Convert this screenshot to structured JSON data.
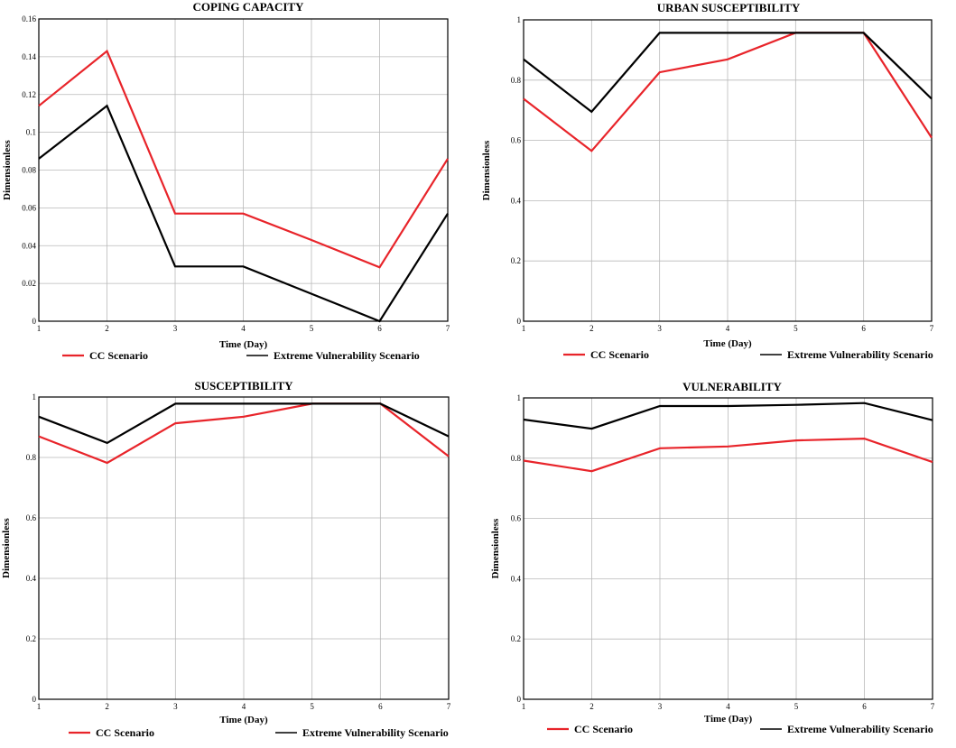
{
  "colors": {
    "cc": "#e8242a",
    "extreme": "#000000"
  },
  "chart_data": [
    {
      "type": "line",
      "title": "COPING CAPACITY",
      "xlabel": "Time (Day)",
      "ylabel": "Dimensionless",
      "x": [
        1,
        2,
        3,
        4,
        5,
        6,
        7
      ],
      "xlim": [
        1,
        7
      ],
      "ylim": [
        0,
        0.16
      ],
      "yticks": [
        0,
        0.02,
        0.04,
        0.06,
        0.08,
        0.1,
        0.12,
        0.14,
        0.16
      ],
      "ytick_labels": [
        "0",
        "0.02",
        "0.04",
        "0.06",
        "0.08",
        "0.1",
        "0.12",
        "0.14",
        "0.16"
      ],
      "series": [
        {
          "name": "CC Scenario",
          "color": "#e8242a",
          "values": [
            0.114,
            0.143,
            0.057,
            0.057,
            0.043,
            0.0285,
            0.086
          ]
        },
        {
          "name": "Extreme Vulnerability Scenario",
          "color": "#000000",
          "values": [
            0.086,
            0.114,
            0.029,
            0.029,
            0.0145,
            0.0,
            0.057
          ]
        }
      ],
      "legend": [
        "CC Scenario",
        "Extreme Vulnerability Scenario"
      ]
    },
    {
      "type": "line",
      "title": "URBAN SUSCEPTIBILITY",
      "xlabel": "Time (Day)",
      "ylabel": "Dimensionless",
      "x": [
        1,
        2,
        3,
        4,
        5,
        6,
        7
      ],
      "xlim": [
        1,
        7
      ],
      "ylim": [
        0,
        1
      ],
      "yticks": [
        0,
        0.2,
        0.4,
        0.6,
        0.8,
        1
      ],
      "ytick_labels": [
        "0",
        "0.2",
        "0.4",
        "0.6",
        "0.8",
        "1"
      ],
      "series": [
        {
          "name": "CC Scenario",
          "color": "#e8242a",
          "values": [
            0.738,
            0.565,
            0.826,
            0.869,
            0.957,
            0.957,
            0.609
          ]
        },
        {
          "name": "Extreme Vulnerability Scenario",
          "color": "#000000",
          "values": [
            0.869,
            0.695,
            0.957,
            0.957,
            0.957,
            0.957,
            0.738
          ]
        }
      ],
      "legend": [
        "CC Scenario",
        "Extreme Vulnerability Scenario"
      ]
    },
    {
      "type": "line",
      "title": "SUSCEPTIBILITY",
      "xlabel": "Time (Day)",
      "ylabel": "Dimensionless",
      "x": [
        1,
        2,
        3,
        4,
        5,
        6,
        7
      ],
      "xlim": [
        1,
        7
      ],
      "ylim": [
        0,
        1
      ],
      "yticks": [
        0,
        0.2,
        0.4,
        0.6,
        0.8,
        1
      ],
      "ytick_labels": [
        "0",
        "0.2",
        "0.4",
        "0.6",
        "0.8",
        "1"
      ],
      "series": [
        {
          "name": "CC Scenario",
          "color": "#e8242a",
          "values": [
            0.87,
            0.782,
            0.913,
            0.935,
            0.978,
            0.978,
            0.804
          ]
        },
        {
          "name": "Extreme Vulnerability Scenario",
          "color": "#000000",
          "values": [
            0.935,
            0.848,
            0.978,
            0.978,
            0.978,
            0.978,
            0.87
          ]
        }
      ],
      "legend": [
        "CC Scenario",
        "Extreme Vulnerability Scenario"
      ]
    },
    {
      "type": "line",
      "title": "VULNERABILITY",
      "xlabel": "Time (Day)",
      "ylabel": "Dimensionless",
      "x": [
        1,
        2,
        3,
        4,
        5,
        6,
        7
      ],
      "xlim": [
        1,
        7
      ],
      "ylim": [
        0,
        1
      ],
      "yticks": [
        0,
        0.2,
        0.4,
        0.6,
        0.8,
        1
      ],
      "ytick_labels": [
        "0",
        "0.2",
        "0.4",
        "0.6",
        "0.8",
        "1"
      ],
      "series": [
        {
          "name": "CC Scenario",
          "color": "#e8242a",
          "values": [
            0.792,
            0.757,
            0.833,
            0.839,
            0.859,
            0.865,
            0.787
          ]
        },
        {
          "name": "Extreme Vulnerability Scenario",
          "color": "#000000",
          "values": [
            0.928,
            0.898,
            0.973,
            0.973,
            0.977,
            0.983,
            0.926
          ]
        }
      ],
      "legend": [
        "CC Scenario",
        "Extreme Vulnerability Scenario"
      ]
    }
  ]
}
